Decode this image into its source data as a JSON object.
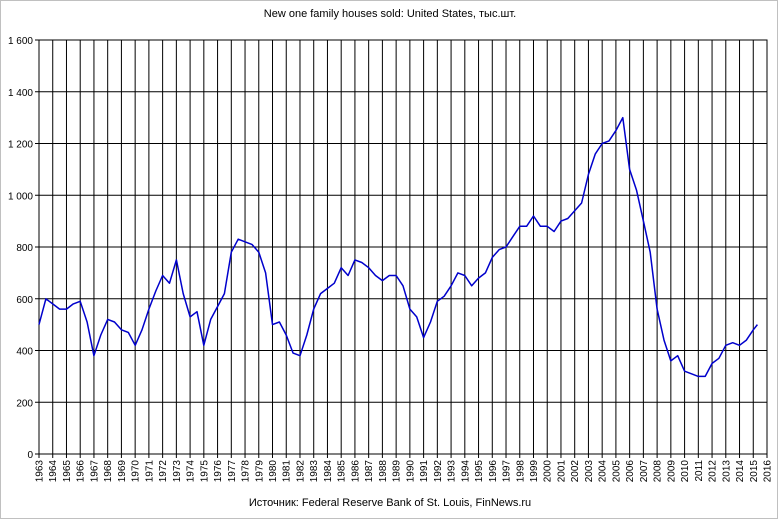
{
  "chart_data": {
    "type": "line",
    "title": "New one family houses sold: United States, тыс.шт.",
    "source": "Источник: Federal Reserve Bank of St. Louis, FinNews.ru",
    "xlabel": "",
    "ylabel": "",
    "ylim": [
      0,
      1600
    ],
    "xlim": [
      1963,
      2016
    ],
    "y_ticks": [
      0,
      200,
      400,
      600,
      800,
      1000,
      1200,
      1400,
      1600
    ],
    "y_tick_labels": [
      "0",
      "200",
      "400",
      "600",
      "800",
      "1 000",
      "1 200",
      "1 400",
      "1 600"
    ],
    "x_tick_labels": [
      "1963",
      "1964",
      "1965",
      "1966",
      "1967",
      "1968",
      "1969",
      "1970",
      "1971",
      "1972",
      "1973",
      "1974",
      "1975",
      "1976",
      "1977",
      "1978",
      "1979",
      "1980",
      "1981",
      "1982",
      "1983",
      "1984",
      "1985",
      "1986",
      "1987",
      "1988",
      "1989",
      "1990",
      "1991",
      "1992",
      "1993",
      "1994",
      "1995",
      "1996",
      "1997",
      "1998",
      "1999",
      "2000",
      "2001",
      "2002",
      "2003",
      "2004",
      "2005",
      "2006",
      "2007",
      "2008",
      "2009",
      "2010",
      "2011",
      "2012",
      "2013",
      "2014",
      "2015",
      "2016"
    ],
    "grid": true,
    "legend": "none",
    "series": [
      {
        "color": "#0000cc",
        "x": [
          1963.0,
          1963.5,
          1964.0,
          1964.5,
          1965.0,
          1965.5,
          1966.0,
          1966.5,
          1967.0,
          1967.5,
          1968.0,
          1968.5,
          1969.0,
          1969.5,
          1970.0,
          1970.5,
          1971.0,
          1971.5,
          1972.0,
          1972.5,
          1973.0,
          1973.5,
          1974.0,
          1974.5,
          1975.0,
          1975.5,
          1976.0,
          1976.5,
          1977.0,
          1977.5,
          1978.0,
          1978.5,
          1979.0,
          1979.5,
          1980.0,
          1980.5,
          1981.0,
          1981.5,
          1982.0,
          1982.5,
          1983.0,
          1983.5,
          1984.0,
          1984.5,
          1985.0,
          1985.5,
          1986.0,
          1986.5,
          1987.0,
          1987.5,
          1988.0,
          1988.5,
          1989.0,
          1989.5,
          1990.0,
          1990.5,
          1991.0,
          1991.5,
          1992.0,
          1992.5,
          1993.0,
          1993.5,
          1994.0,
          1994.5,
          1995.0,
          1995.5,
          1996.0,
          1996.5,
          1997.0,
          1997.5,
          1998.0,
          1998.5,
          1999.0,
          1999.5,
          2000.0,
          2000.5,
          2001.0,
          2001.5,
          2002.0,
          2002.5,
          2003.0,
          2003.5,
          2004.0,
          2004.5,
          2005.0,
          2005.5,
          2006.0,
          2006.5,
          2007.0,
          2007.5,
          2008.0,
          2008.5,
          2009.0,
          2009.5,
          2010.0,
          2010.5,
          2011.0,
          2011.5,
          2012.0,
          2012.5,
          2013.0,
          2013.5,
          2014.0,
          2014.5,
          2015.0,
          2015.3
        ],
        "values": [
          500,
          600,
          580,
          560,
          560,
          580,
          590,
          510,
          380,
          460,
          520,
          510,
          480,
          470,
          420,
          480,
          560,
          630,
          690,
          660,
          750,
          620,
          530,
          550,
          420,
          520,
          570,
          620,
          780,
          830,
          820,
          810,
          780,
          700,
          500,
          510,
          460,
          390,
          380,
          460,
          560,
          620,
          640,
          660,
          720,
          690,
          750,
          740,
          720,
          690,
          670,
          690,
          690,
          650,
          560,
          530,
          450,
          510,
          590,
          610,
          650,
          700,
          690,
          650,
          680,
          700,
          760,
          790,
          800,
          840,
          880,
          880,
          920,
          880,
          880,
          860,
          900,
          910,
          940,
          970,
          1080,
          1160,
          1200,
          1210,
          1250,
          1300,
          1100,
          1020,
          900,
          780,
          560,
          440,
          360,
          380,
          320,
          310,
          300,
          300,
          350,
          370,
          420,
          430,
          420,
          440,
          480,
          500
        ]
      }
    ]
  }
}
